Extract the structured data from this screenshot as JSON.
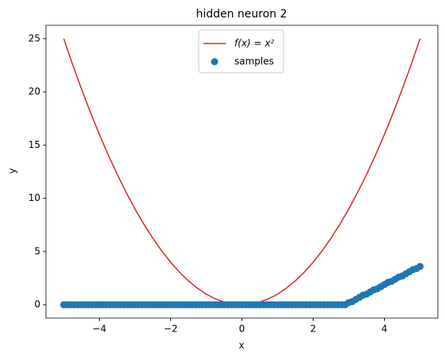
{
  "chart_data": {
    "type": "line",
    "title": "hidden neuron 2",
    "xlabel": "x",
    "ylabel": "y",
    "xlim": [
      -5.5,
      5.5
    ],
    "ylim": [
      -1.25,
      26.25
    ],
    "xticks": [
      {
        "value": -4,
        "label": "−4"
      },
      {
        "value": -2,
        "label": "−2"
      },
      0,
      2,
      4
    ],
    "yticks": [
      0,
      5,
      10,
      15,
      20,
      25
    ],
    "legend": "upper center",
    "series": [
      {
        "name": "f(x) = x²",
        "type": "line",
        "color": "#d62728",
        "x": [
          -5,
          -4.75,
          -4.5,
          -4.25,
          -4,
          -3.75,
          -3.5,
          -3.25,
          -3,
          -2.75,
          -2.5,
          -2.25,
          -2,
          -1.75,
          -1.5,
          -1.25,
          -1,
          -0.75,
          -0.5,
          -0.25,
          0,
          0.25,
          0.5,
          0.75,
          1,
          1.25,
          1.5,
          1.75,
          2,
          2.25,
          2.5,
          2.75,
          3,
          3.25,
          3.5,
          3.75,
          4,
          4.25,
          4.5,
          4.75,
          5
        ],
        "values": [
          25,
          22.5625,
          20.25,
          18.0625,
          16,
          14.0625,
          12.25,
          10.5625,
          9,
          7.5625,
          6.25,
          5.0625,
          4,
          3.0625,
          2.25,
          1.5625,
          1,
          0.5625,
          0.25,
          0.0625,
          0,
          0.0625,
          0.25,
          0.5625,
          1,
          1.5625,
          2.25,
          3.0625,
          4,
          5.0625,
          6.25,
          7.5625,
          9,
          10.5625,
          12.25,
          14.0625,
          16,
          18.0625,
          20.25,
          22.5625,
          25
        ]
      },
      {
        "name": "samples",
        "type": "scatter",
        "color": "#1f77b4",
        "x": [
          -5,
          -4.9,
          -4.8,
          -4.7,
          -4.6,
          -4.5,
          -4.4,
          -4.3,
          -4.2,
          -4.1,
          -4,
          -3.9,
          -3.8,
          -3.7,
          -3.6,
          -3.5,
          -3.4,
          -3.3,
          -3.2,
          -3.1,
          -3,
          -2.9,
          -2.8,
          -2.7,
          -2.6,
          -2.5,
          -2.4,
          -2.3,
          -2.2,
          -2.1,
          -2,
          -1.9,
          -1.8,
          -1.7,
          -1.6,
          -1.5,
          -1.4,
          -1.3,
          -1.2,
          -1.1,
          -1,
          -0.9,
          -0.8,
          -0.7,
          -0.6,
          -0.5,
          -0.4,
          -0.3,
          -0.2,
          -0.1,
          0,
          0.1,
          0.2,
          0.3,
          0.4,
          0.5,
          0.6,
          0.7,
          0.8,
          0.9,
          1,
          1.1,
          1.2,
          1.3,
          1.4,
          1.5,
          1.6,
          1.7,
          1.8,
          1.9,
          2,
          2.1,
          2.2,
          2.3,
          2.4,
          2.5,
          2.6,
          2.7,
          2.8,
          2.9,
          3,
          3.1,
          3.2,
          3.3,
          3.4,
          3.5,
          3.6,
          3.7,
          3.8,
          3.9,
          4,
          4.1,
          4.2,
          4.3,
          4.4,
          4.5,
          4.6,
          4.7,
          4.8,
          4.9,
          5
        ],
        "values": [
          0,
          0,
          0,
          0,
          0,
          0,
          0,
          0,
          0,
          0,
          0,
          0,
          0,
          0,
          0,
          0,
          0,
          0,
          0,
          0,
          0,
          0,
          0,
          0,
          0,
          0,
          0,
          0,
          0,
          0,
          0,
          0,
          0,
          0,
          0,
          0,
          0,
          0,
          0,
          0,
          0,
          0,
          0,
          0,
          0,
          0,
          0,
          0,
          0,
          0,
          0,
          0,
          0,
          0,
          0,
          0,
          0,
          0,
          0,
          0,
          0,
          0,
          0,
          0,
          0,
          0,
          0,
          0,
          0,
          0,
          0,
          0,
          0,
          0,
          0,
          0,
          0,
          0,
          0,
          0,
          0.2,
          0.3,
          0.5,
          0.7,
          0.9,
          1.0,
          1.2,
          1.4,
          1.5,
          1.7,
          1.9,
          2.1,
          2.2,
          2.4,
          2.6,
          2.7,
          2.9,
          3.1,
          3.3,
          3.4,
          3.6
        ]
      }
    ]
  }
}
